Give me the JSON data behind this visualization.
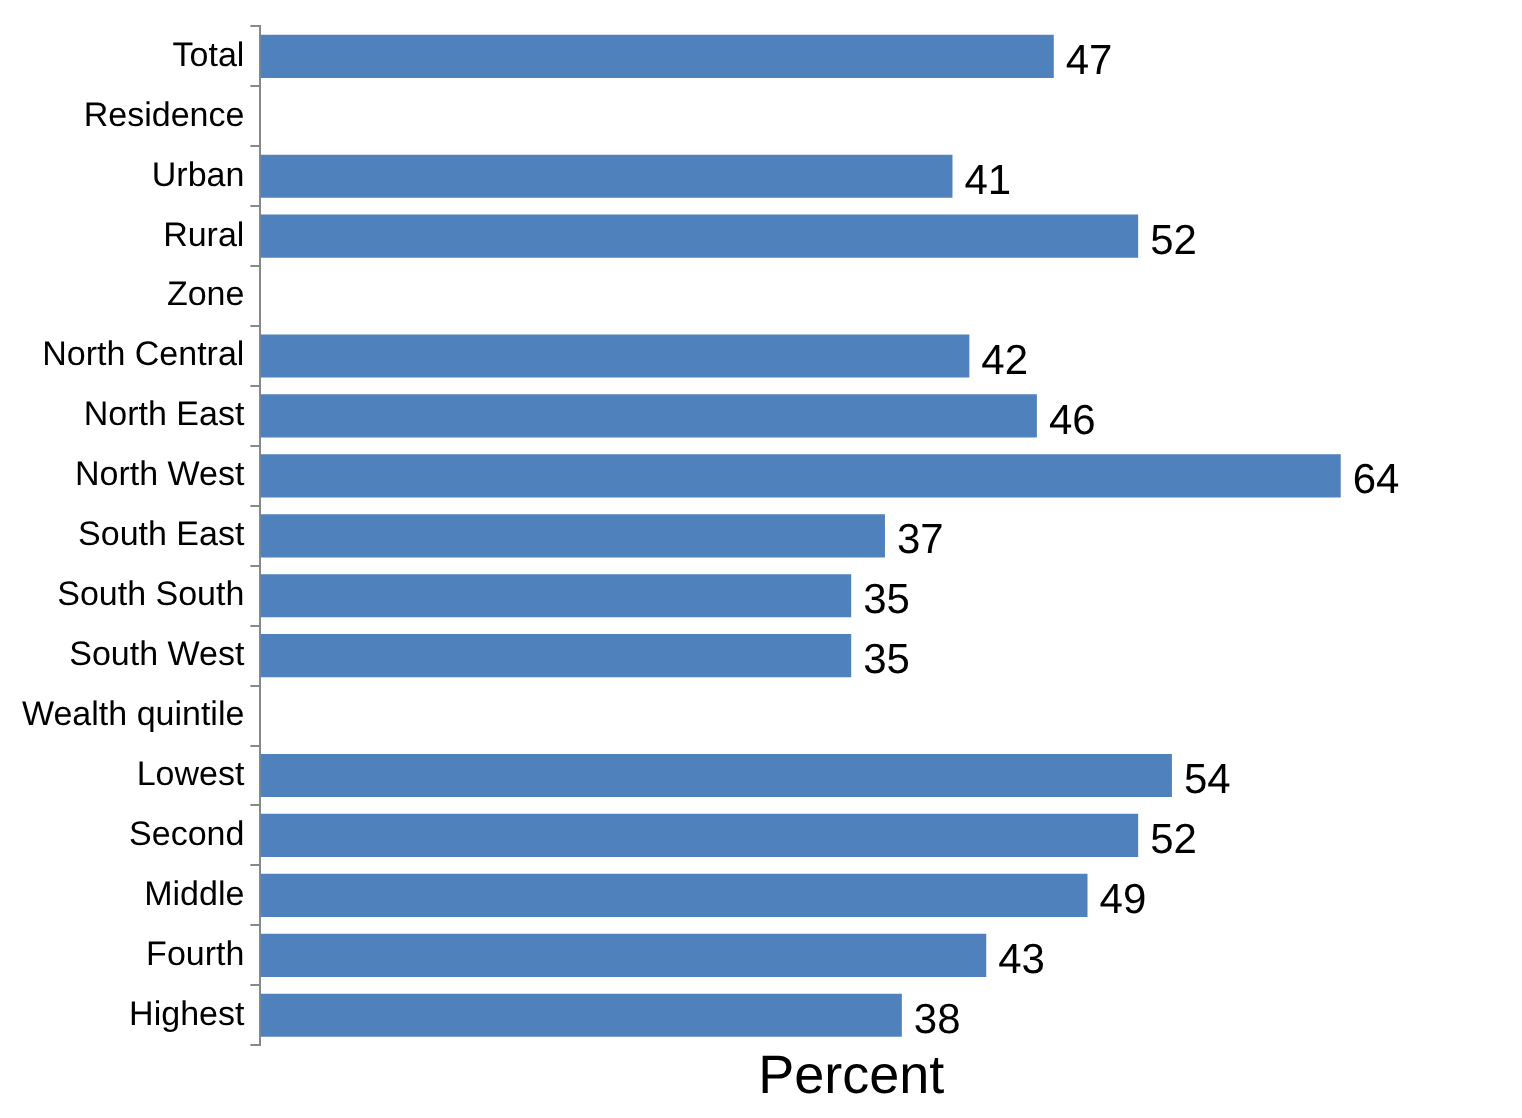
{
  "chart_data": {
    "type": "bar",
    "orientation": "horizontal",
    "xlabel": "Percent",
    "categories": [
      "Total",
      "Residence",
      "Urban",
      "Rural",
      "Zone",
      "North Central",
      "North East",
      "North West",
      "South East",
      "South South",
      "South West",
      "Wealth quintile",
      "Lowest",
      "Second",
      "Middle",
      "Fourth",
      "Highest"
    ],
    "values": [
      47,
      null,
      41,
      52,
      null,
      42,
      46,
      64,
      37,
      35,
      35,
      null,
      54,
      52,
      49,
      43,
      38
    ],
    "color": "#4f81bd",
    "data_labels": true,
    "grid": false,
    "legend": false
  }
}
